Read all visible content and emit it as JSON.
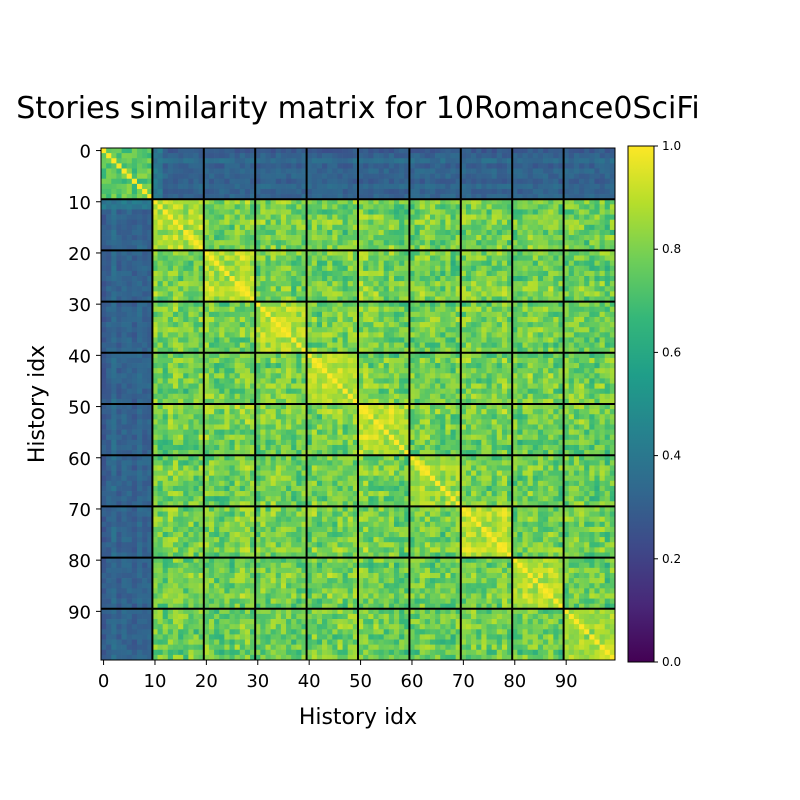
{
  "chart_data": {
    "type": "heatmap",
    "title": "Stories similarity matrix for 10Romance0SciFi",
    "xlabel": "History idx",
    "ylabel": "History idx",
    "n": 100,
    "x_ticks": [
      0,
      10,
      20,
      30,
      40,
      50,
      60,
      70,
      80,
      90
    ],
    "y_ticks": [
      0,
      10,
      20,
      30,
      40,
      50,
      60,
      70,
      80,
      90
    ],
    "x_tick_labels": [
      "0",
      "10",
      "20",
      "30",
      "40",
      "50",
      "60",
      "70",
      "80",
      "90"
    ],
    "y_tick_labels": [
      "0",
      "10",
      "20",
      "30",
      "40",
      "50",
      "60",
      "70",
      "80",
      "90"
    ],
    "group_boundaries": [
      9.5,
      19.5,
      29.5,
      39.5,
      49.5,
      59.5,
      69.5,
      79.5,
      89.5
    ],
    "blocks": {
      "size": 10,
      "group_1_within": 0.75,
      "group_1_to_rest": 0.32,
      "rest_within": 0.88,
      "rest_between": 0.78,
      "diagonal": 1.0
    },
    "colorbar": {
      "colormap": "viridis",
      "range": [
        0.0,
        1.0
      ],
      "ticks": [
        0.0,
        0.2,
        0.4,
        0.6,
        0.8,
        1.0
      ],
      "tick_labels": [
        "0.0",
        "0.2",
        "0.4",
        "0.6",
        "0.8",
        "1.0"
      ]
    }
  }
}
